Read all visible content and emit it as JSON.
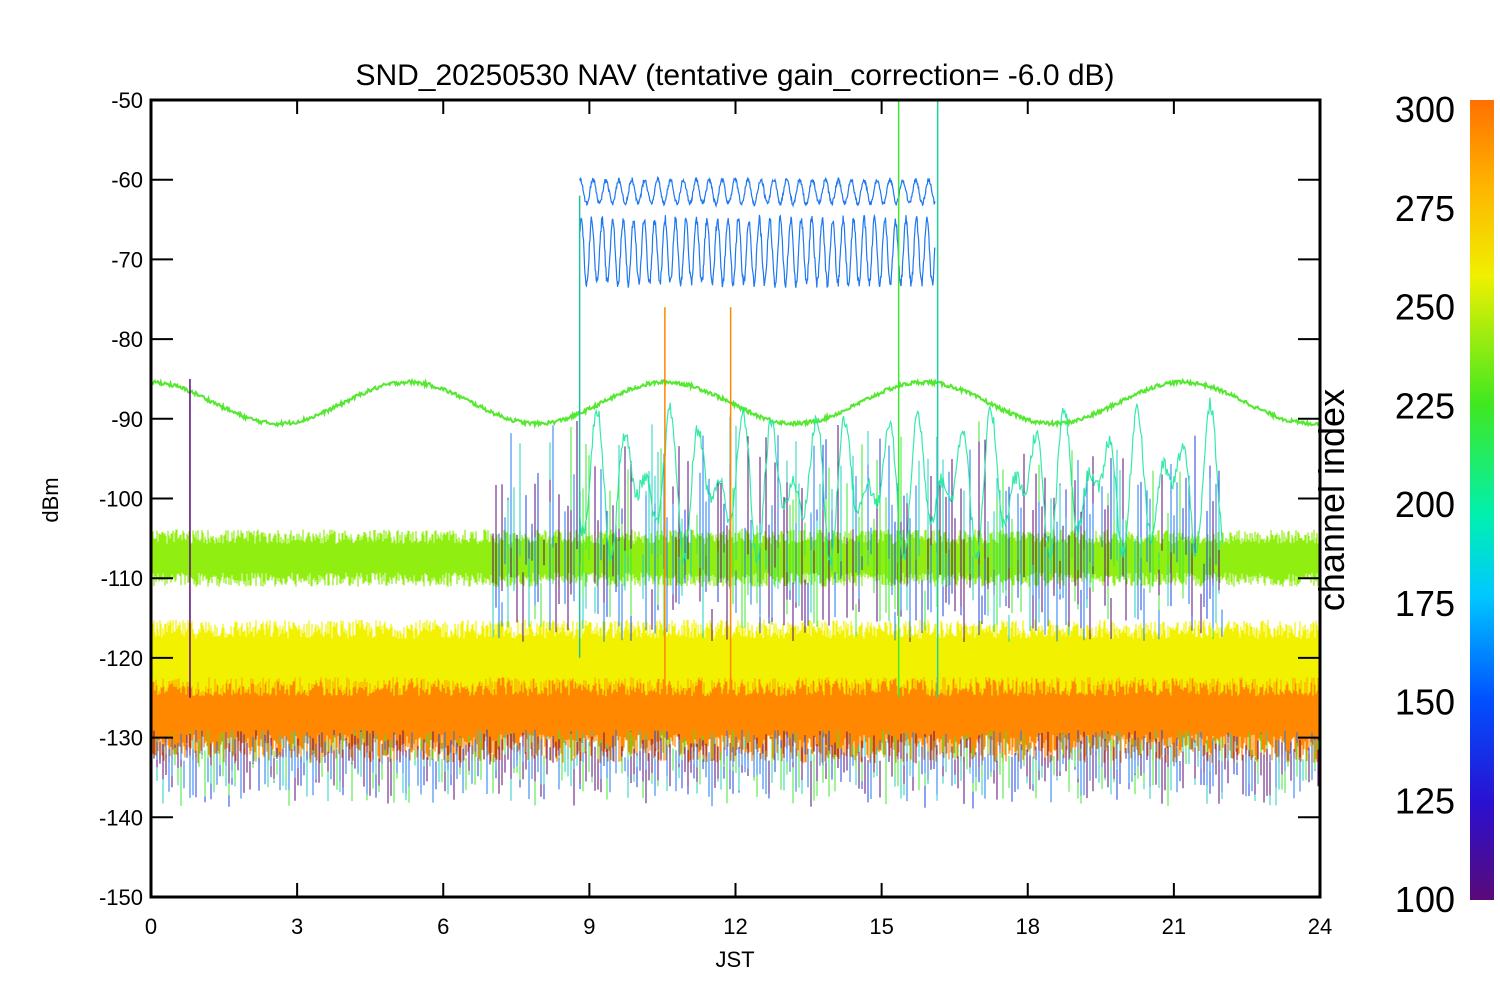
{
  "chart_data": {
    "type": "line",
    "title": "SND_20250530 NAV (tentative gain_correction= -6.0 dB)",
    "xlabel": "JST",
    "ylabel": "dBm",
    "xlim": [
      0,
      24
    ],
    "ylim": [
      -150,
      -50
    ],
    "x_ticks": [
      "0",
      "3",
      "6",
      "9",
      "12",
      "15",
      "18",
      "21",
      "24"
    ],
    "y_ticks": [
      "-50",
      "-60",
      "-70",
      "-80",
      "-90",
      "-100",
      "-110",
      "-120",
      "-130",
      "-140",
      "-150"
    ],
    "grid": false,
    "colorbar": {
      "title": "channel index",
      "range": [
        100,
        300
      ],
      "ticks": [
        "100",
        "125",
        "150",
        "175",
        "200",
        "225",
        "250",
        "275",
        "300"
      ],
      "colormap": "rainbow"
    },
    "series": [
      {
        "channel": 290,
        "color": "#ff8800",
        "band_center": -126,
        "band_halfwidth": 6,
        "x_start": 0,
        "x_end": 24
      },
      {
        "channel": 270,
        "color": "#f2f200",
        "band_center": -120,
        "band_halfwidth": 4,
        "x_start": 0,
        "x_end": 24
      },
      {
        "channel": 245,
        "color": "#90ee10",
        "band_center": -107.5,
        "band_halfwidth": 3,
        "x_start": 0,
        "x_end": 24
      },
      {
        "channel": 235,
        "color": "#55e830",
        "curve": "sinusoid",
        "center": -88,
        "amplitude": 2.6,
        "period_hours": 5.3,
        "x_start": 0,
        "x_end": 24
      },
      {
        "channel": 150,
        "color": "#1e78f0",
        "curve": "oscillation",
        "upper": [
          -60,
          -63
        ],
        "lower": [
          -65,
          -73
        ],
        "x_start": 8.8,
        "x_end": 16.1
      },
      {
        "channel": 205,
        "color": "#20e8a0",
        "curve": "variable",
        "range": [
          -112,
          -84
        ],
        "x_start": 8.8,
        "x_end": 22.0
      }
    ]
  }
}
